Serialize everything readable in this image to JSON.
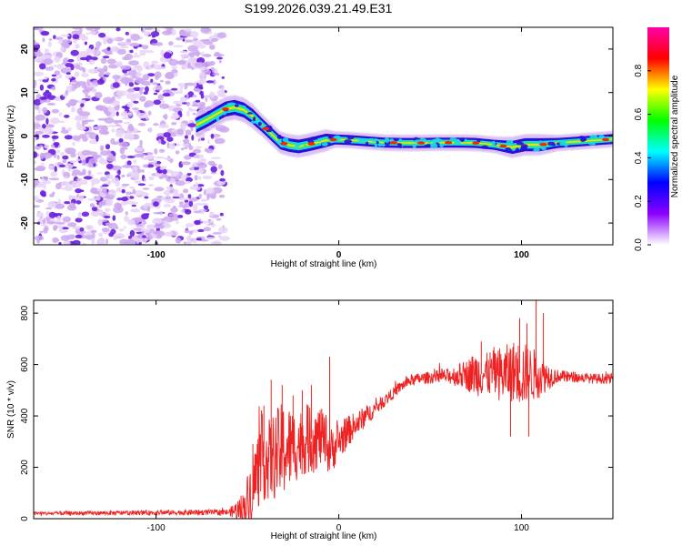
{
  "title": "S199.2026.039.21.49.E31",
  "colors": {
    "snr_line": "#ee2222",
    "ridge_stroke": "#2a0fd8",
    "ridge_fill": "#18d8e8",
    "ridge_core": "#e8e020",
    "peak": "#ff2200",
    "noise_light": "#cda8f0",
    "noise_dark": "#6a1ee0",
    "noise_faint": "#e7d4f8"
  },
  "chart_data": [
    {
      "type": "heatmap",
      "name": "spectrogram",
      "xlabel": "Height of straight line (km)",
      "ylabel": "Frequency (Hz)",
      "xlim": [
        -167,
        150
      ],
      "ylim": [
        -25,
        25
      ],
      "xticks": [
        -100,
        0,
        100
      ],
      "yticks": [
        -20,
        -10,
        0,
        10,
        20
      ],
      "xtick_labels": [
        "-100",
        "0",
        "100"
      ],
      "ytick_labels": [
        "-20",
        "-10",
        "0",
        "10",
        "20"
      ],
      "noise_region_x": [
        -167,
        -62
      ],
      "ridge": {
        "x": [
          -78,
          -72,
          -67,
          -62,
          -57,
          -52,
          -47,
          -42,
          -37,
          -32,
          -27,
          -22,
          -17,
          -12,
          -7,
          -2,
          5,
          15,
          25,
          35,
          45,
          55,
          65,
          75,
          85,
          95,
          102,
          110,
          120,
          130,
          140,
          150
        ],
        "y": [
          2.5,
          3.8,
          5.0,
          6.2,
          6.6,
          6.0,
          4.5,
          2.5,
          0.5,
          -1.5,
          -2.1,
          -2.4,
          -2.0,
          -1.5,
          -1.0,
          -0.8,
          -0.9,
          -1.2,
          -1.5,
          -1.6,
          -1.6,
          -1.5,
          -1.5,
          -1.6,
          -2.0,
          -2.6,
          -2.0,
          -2.0,
          -1.6,
          -1.3,
          -1.0,
          -0.7
        ],
        "peaks_x": [
          -62,
          -40,
          -30,
          -15,
          -3,
          30,
          45,
          60,
          75,
          90,
          112,
          146
        ]
      },
      "colorbar": {
        "label": "Normalized spectral amplitude",
        "range": [
          0,
          1
        ],
        "ticks": [
          0.0,
          0.2,
          0.4,
          0.6,
          0.8
        ],
        "tick_labels": [
          "0.0",
          "0.2",
          "0.4",
          "0.6",
          "0.8"
        ],
        "colormap": [
          "#ffffff",
          "#8b00ff",
          "#0000ff",
          "#00ffff",
          "#00ff00",
          "#ffff00",
          "#ff0000",
          "#ff00aa"
        ]
      }
    },
    {
      "type": "line",
      "name": "snr",
      "xlabel": "Height of straight line (km)",
      "ylabel": "SNR (10 * v/v)",
      "xlim": [
        -167,
        150
      ],
      "ylim": [
        0,
        850
      ],
      "xticks": [
        -100,
        0,
        100
      ],
      "yticks": [
        0,
        200,
        400,
        600,
        800
      ],
      "xtick_labels": [
        "-100",
        "0",
        "100"
      ],
      "ytick_labels": [
        "0",
        "200",
        "400",
        "600",
        "800"
      ],
      "series": [
        {
          "name": "SNR",
          "x": [
            -167,
            -130,
            -90,
            -60,
            -52,
            -47,
            -42,
            -38,
            -34,
            -30,
            -25,
            -20,
            -15,
            -10,
            -5,
            0,
            5,
            10,
            15,
            20,
            25,
            30,
            35,
            40,
            50,
            60,
            70,
            75,
            80,
            85,
            90,
            95,
            100,
            105,
            110,
            115,
            120,
            130,
            140,
            150
          ],
          "y": [
            20,
            22,
            24,
            25,
            40,
            130,
            240,
            230,
            250,
            270,
            280,
            300,
            310,
            320,
            260,
            300,
            340,
            370,
            400,
            430,
            460,
            490,
            520,
            540,
            550,
            555,
            560,
            565,
            560,
            570,
            560,
            575,
            565,
            560,
            560,
            555,
            555,
            550,
            545,
            545
          ],
          "noise": [
            8,
            8,
            10,
            12,
            70,
            140,
            170,
            160,
            180,
            190,
            150,
            130,
            140,
            120,
            90,
            80,
            60,
            50,
            40,
            30,
            25,
            22,
            22,
            22,
            24,
            30,
            60,
            90,
            80,
            100,
            110,
            120,
            130,
            110,
            90,
            50,
            25,
            20,
            20,
            20
          ],
          "spikes": [
            {
              "x": -47,
              "y": 290
            },
            {
              "x": -41,
              "y": 440
            },
            {
              "x": -37,
              "y": 540
            },
            {
              "x": -31,
              "y": 520
            },
            {
              "x": -25,
              "y": 480
            },
            {
              "x": -20,
              "y": 500
            },
            {
              "x": -15,
              "y": 520
            },
            {
              "x": -5,
              "y": 630
            },
            {
              "x": 78,
              "y": 690
            },
            {
              "x": 88,
              "y": 650
            },
            {
              "x": 99,
              "y": 780
            },
            {
              "x": 103,
              "y": 760
            },
            {
              "x": 108,
              "y": 850
            },
            {
              "x": 112,
              "y": 800
            },
            {
              "x": 94,
              "y": 320
            },
            {
              "x": 104,
              "y": 320
            }
          ]
        }
      ]
    }
  ]
}
